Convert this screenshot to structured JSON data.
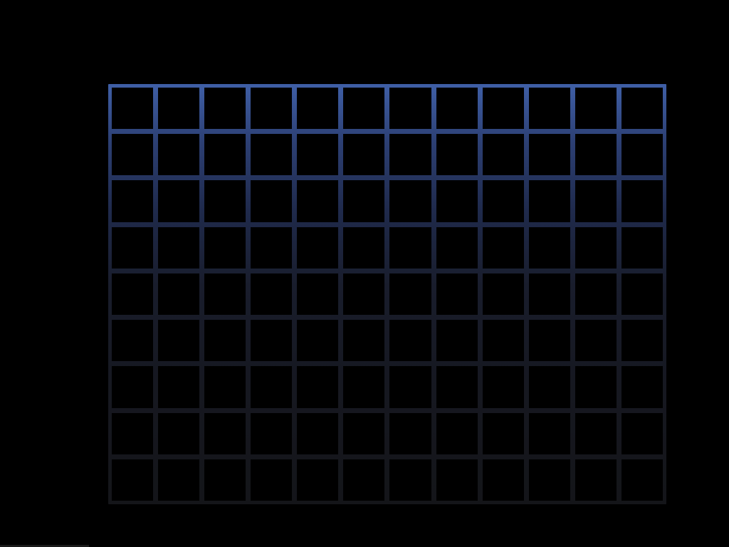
{
  "board": {
    "rows": 9,
    "columns": 12,
    "cells": "empty"
  },
  "colors": {
    "background": "#000000",
    "grid_line_top": "#3f5fa6",
    "grid_line_bottom": "#141519",
    "cell_fill": "#000000"
  }
}
